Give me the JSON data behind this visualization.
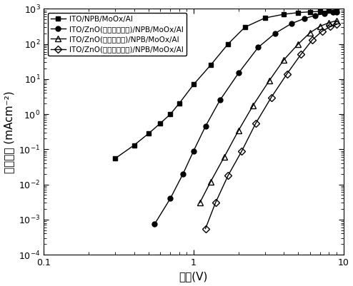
{
  "title": "",
  "xlabel": "电压(V)",
  "ylabel": "电流密度 (mAcm⁻²)",
  "xlim": [
    0.1,
    10
  ],
  "ylim": [
    0.0001,
    1000.0
  ],
  "legend_labels": [
    "ITO/NPB/MoOx/Al",
    "ITO/ZnO(未交联，浸泡)/NPB/MoOx/Al",
    "ITO/ZnO(交联，浸泡)/NPB/MoOx/Al",
    "ITO/ZnO(交联，未浸泡)/NPB/MoOx/Al"
  ],
  "series": [
    {
      "x": [
        0.3,
        0.4,
        0.5,
        0.6,
        0.7,
        0.8,
        1.0,
        1.3,
        1.7,
        2.2,
        3.0,
        4.0,
        5.0,
        6.0,
        7.0,
        8.0,
        9.0
      ],
      "y": [
        0.055,
        0.13,
        0.28,
        0.55,
        1.0,
        2.0,
        7.0,
        25,
        100,
        300,
        550,
        700,
        780,
        820,
        850,
        870,
        900
      ],
      "marker": "s",
      "filled": true,
      "color": "black",
      "linestyle": "-",
      "markersize": 5
    },
    {
      "x": [
        0.55,
        0.7,
        0.85,
        1.0,
        1.2,
        1.5,
        2.0,
        2.7,
        3.5,
        4.5,
        5.5,
        6.5,
        7.5,
        8.5,
        9.0
      ],
      "y": [
        0.00075,
        0.004,
        0.02,
        0.09,
        0.45,
        2.5,
        15,
        80,
        200,
        380,
        530,
        650,
        730,
        790,
        820
      ],
      "marker": "o",
      "filled": true,
      "color": "black",
      "linestyle": "-",
      "markersize": 5
    },
    {
      "x": [
        1.1,
        1.3,
        1.6,
        2.0,
        2.5,
        3.2,
        4.0,
        5.0,
        6.0,
        7.0,
        8.0,
        9.0
      ],
      "y": [
        0.003,
        0.012,
        0.06,
        0.35,
        1.8,
        9.0,
        35,
        100,
        210,
        320,
        400,
        460
      ],
      "marker": "^",
      "filled": false,
      "color": "black",
      "linestyle": "-",
      "markersize": 6
    },
    {
      "x": [
        1.2,
        1.4,
        1.7,
        2.1,
        2.6,
        3.3,
        4.2,
        5.2,
        6.2,
        7.2,
        8.2,
        9.0
      ],
      "y": [
        0.00055,
        0.003,
        0.018,
        0.09,
        0.55,
        3.0,
        14,
        50,
        130,
        230,
        310,
        360
      ],
      "marker": "D",
      "filled": false,
      "color": "black",
      "linestyle": "-",
      "markersize": 5
    }
  ],
  "background_color": "#ffffff",
  "font_size_label": 11,
  "font_size_tick": 9,
  "font_size_legend": 7.5
}
